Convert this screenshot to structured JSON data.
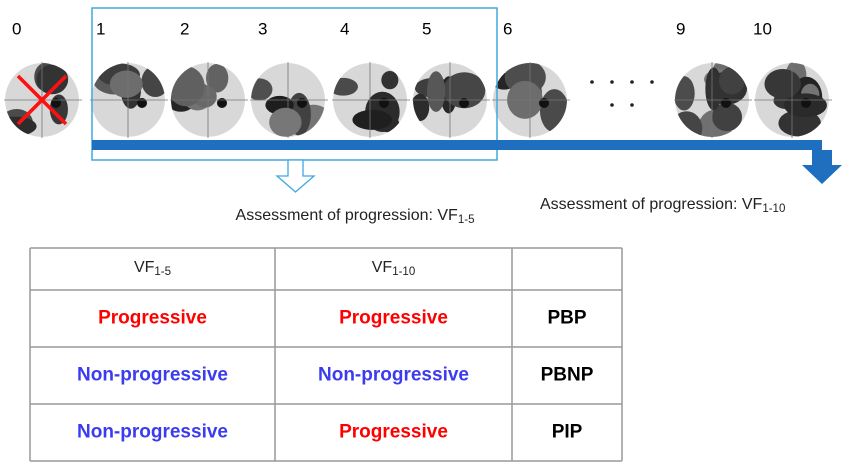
{
  "timeline": {
    "labels": [
      "0",
      "1",
      "2",
      "3",
      "4",
      "5",
      "6",
      "9",
      "10"
    ]
  },
  "annotations": {
    "short": {
      "text": "Assessment of progression: VF",
      "sub": "1-5"
    },
    "long": {
      "text": "Assessment of progression: VF",
      "sub": "1-10"
    }
  },
  "table": {
    "header": [
      {
        "text": "VF",
        "sub": "1-5"
      },
      {
        "text": "VF",
        "sub": "1-10"
      }
    ],
    "rows": [
      [
        {
          "text": "Progressive",
          "color": "#ff0000"
        },
        {
          "text": "Progressive",
          "color": "#ff0000"
        },
        {
          "text": "PBP",
          "color": "#000000"
        }
      ],
      [
        {
          "text": "Non-progressive",
          "color": "#3b3bf0"
        },
        {
          "text": "Non-progressive",
          "color": "#3b3bf0"
        },
        {
          "text": "PBNP",
          "color": "#000000"
        }
      ],
      [
        {
          "text": "Non-progressive",
          "color": "#3b3bf0"
        },
        {
          "text": "Progressive",
          "color": "#ff0000"
        },
        {
          "text": "PIP",
          "color": "#000000"
        }
      ]
    ]
  }
}
